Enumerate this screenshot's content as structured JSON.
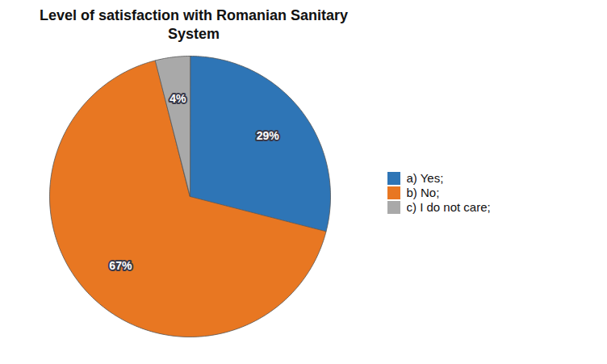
{
  "chart_data": {
    "type": "pie",
    "title": "Level of satisfaction with Romanian Sanitary\nSystem",
    "categories": [
      "a) Yes;",
      "b) No;",
      "c) I do not care;"
    ],
    "values": [
      29,
      67,
      4
    ],
    "value_labels": [
      "29%",
      "67%",
      "4%"
    ],
    "colors": [
      "#2E75B6",
      "#E87722",
      "#A9A9A9"
    ],
    "data_labels": true,
    "legend": "right"
  }
}
